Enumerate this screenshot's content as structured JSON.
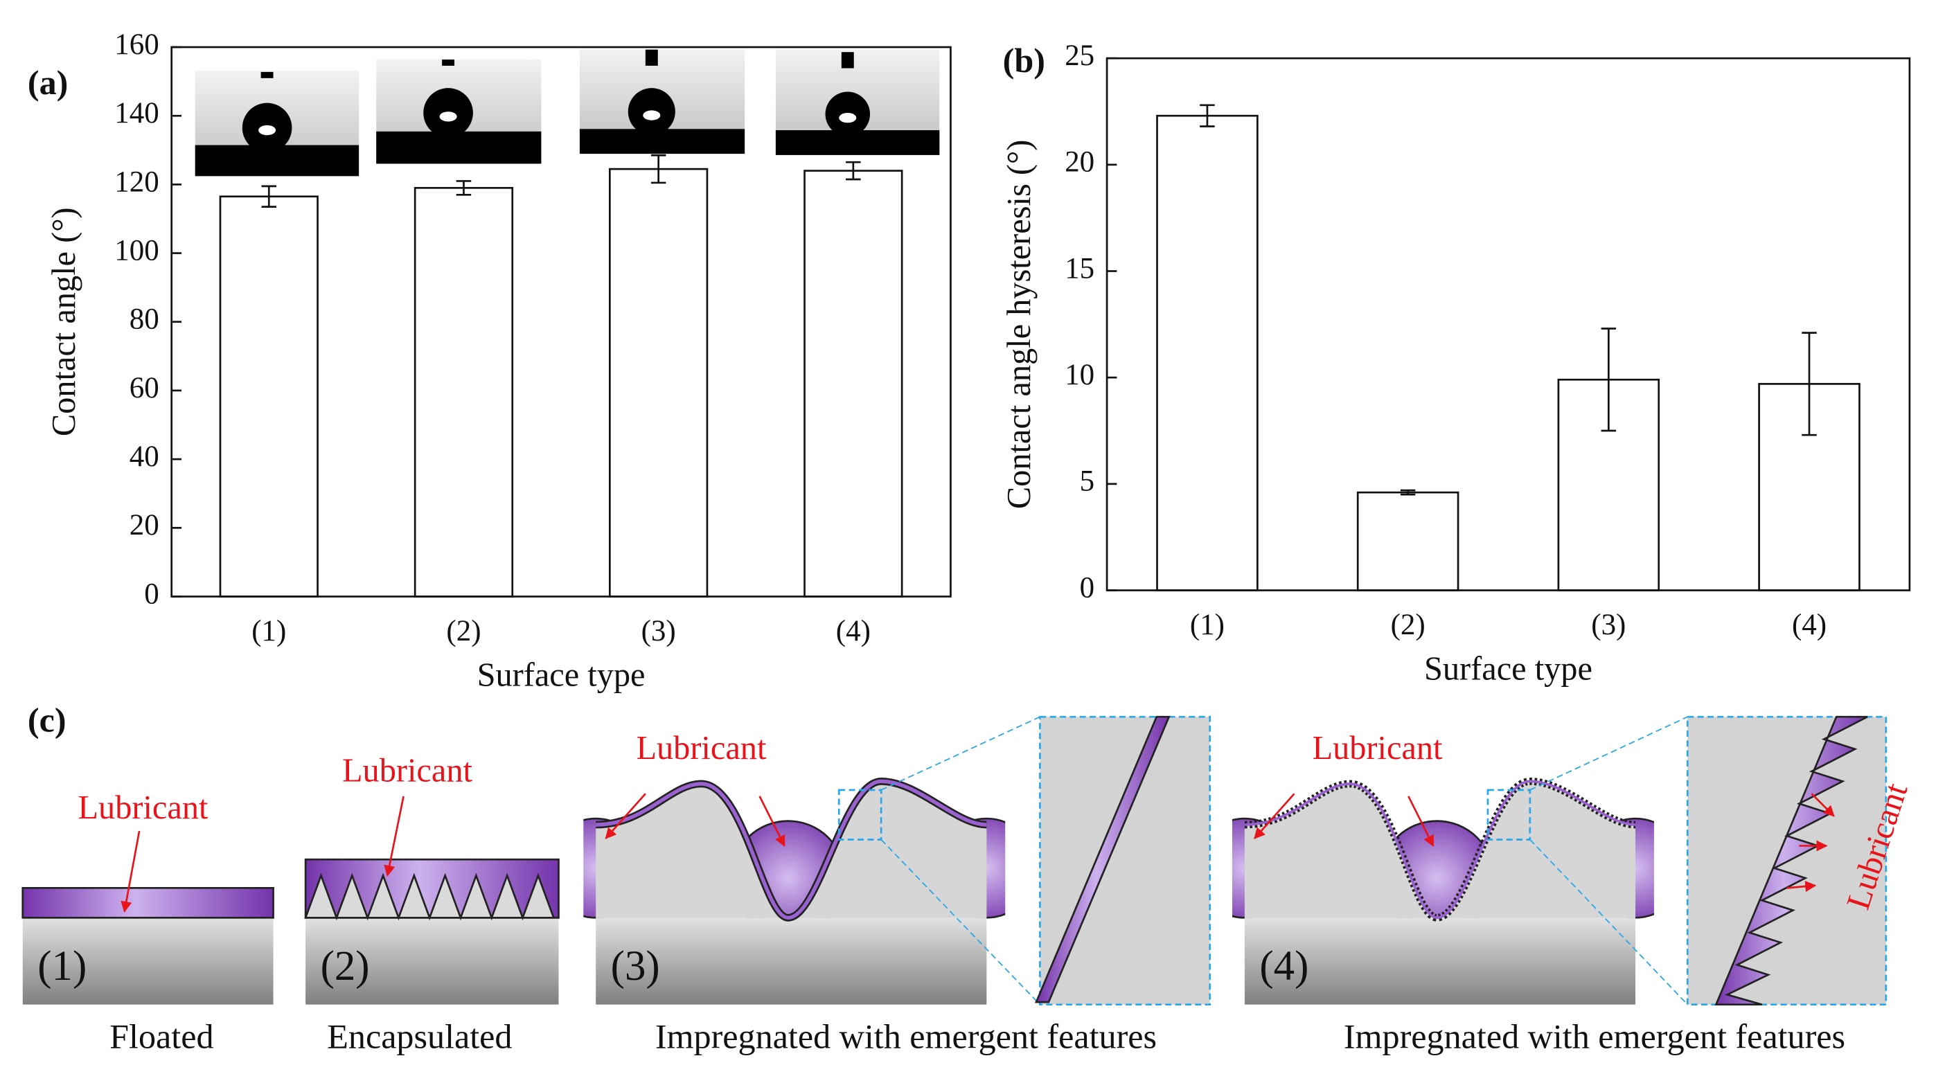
{
  "chart_data": [
    {
      "type": "bar",
      "panel": "(a)",
      "categories": [
        "(1)",
        "(2)",
        "(3)",
        "(4)"
      ],
      "values": [
        116.5,
        119,
        124.5,
        124
      ],
      "errors": [
        3,
        2,
        4,
        2.5
      ],
      "color": "#ffffff",
      "x_label": "Surface type",
      "y_label": "Contact angle (°)",
      "ylim": [
        0,
        160
      ],
      "yticks": [
        0,
        20,
        40,
        60,
        80,
        100,
        120,
        140,
        160
      ]
    },
    {
      "type": "bar",
      "panel": "(b)",
      "categories": [
        "(1)",
        "(2)",
        "(3)",
        "(4)"
      ],
      "values": [
        22.3,
        4.6,
        9.9,
        9.7
      ],
      "errors": [
        0.5,
        0.1,
        2.4,
        2.4
      ],
      "color": "#ffffff",
      "x_label": "Surface type",
      "y_label": "Contact angle hysteresis (°)",
      "ylim": [
        0,
        25
      ],
      "yticks": [
        0,
        5,
        10,
        15,
        20,
        25
      ]
    }
  ],
  "panel_c": {
    "label": "(c)",
    "diagrams": [
      {
        "number": "(1)",
        "caption": "Floated",
        "lubricant": "Lubricant"
      },
      {
        "number": "(2)",
        "caption": "Encapsulated",
        "lubricant": "Lubricant"
      },
      {
        "number": "(3)",
        "caption": "Impregnated with emergent features",
        "lubricant": "Lubricant"
      },
      {
        "number": "(4)",
        "caption": "Impregnated with emergent features",
        "lubricant": "Lubricant",
        "zoom_lubricant": "Lubricant"
      }
    ]
  }
}
